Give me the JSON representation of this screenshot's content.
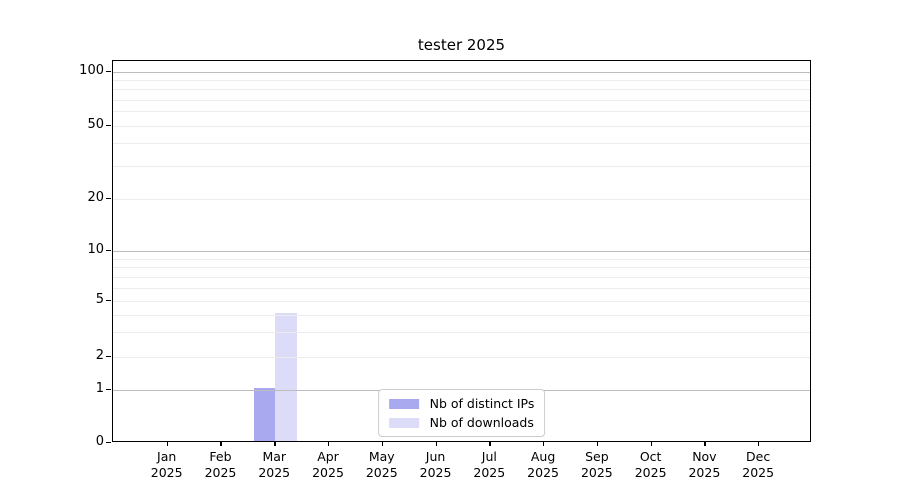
{
  "title": "tester 2025",
  "chart_data": {
    "type": "bar",
    "title": "tester 2025",
    "categories": [
      "Jan 2025",
      "Feb 2025",
      "Mar 2025",
      "Apr 2025",
      "May 2025",
      "Jun 2025",
      "Jul 2025",
      "Aug 2025",
      "Sep 2025",
      "Oct 2025",
      "Nov 2025",
      "Dec 2025"
    ],
    "category_months": [
      "Jan",
      "Feb",
      "Mar",
      "Apr",
      "May",
      "Jun",
      "Jul",
      "Aug",
      "Sep",
      "Oct",
      "Nov",
      "Dec"
    ],
    "category_years": [
      "2025",
      "2025",
      "2025",
      "2025",
      "2025",
      "2025",
      "2025",
      "2025",
      "2025",
      "2025",
      "2025",
      "2025"
    ],
    "series": [
      {
        "name": "Nb of distinct IPs",
        "color": "#a9a9f0",
        "values": [
          0,
          0,
          1,
          0,
          0,
          0,
          0,
          0,
          0,
          0,
          0,
          0
        ]
      },
      {
        "name": "Nb of downloads",
        "color": "#dcdcf8",
        "values": [
          0,
          0,
          4,
          0,
          0,
          0,
          0,
          0,
          0,
          0,
          0,
          0
        ]
      }
    ],
    "xlabel": "",
    "ylabel": "",
    "yscale": "log",
    "ylim": [
      0,
      115
    ],
    "y_tick_values": [
      0,
      1,
      2,
      5,
      10,
      20,
      50,
      100
    ],
    "y_tick_labels": [
      "0",
      "1",
      "2",
      "5",
      "10",
      "20",
      "50",
      "100"
    ],
    "y_major_gridlines": [
      1,
      10,
      100
    ],
    "y_minor_gridlines": [
      2,
      3,
      4,
      5,
      6,
      7,
      8,
      9,
      20,
      30,
      40,
      50,
      60,
      70,
      80,
      90
    ],
    "grid": "horizontal",
    "legend_position": "lower center"
  },
  "legend": {
    "items": [
      {
        "label": "Nb of distinct IPs",
        "color": "#a9a9f0"
      },
      {
        "label": "Nb of downloads",
        "color": "#dcdcf8"
      }
    ]
  },
  "colors": {
    "background": "#ffffff",
    "text": "#000000",
    "spine": "#000000",
    "major_gridline": "#bcbcbc",
    "minor_gridline": "#ececec",
    "legend_border": "#cccccc",
    "legend_background": "#ffffff"
  }
}
